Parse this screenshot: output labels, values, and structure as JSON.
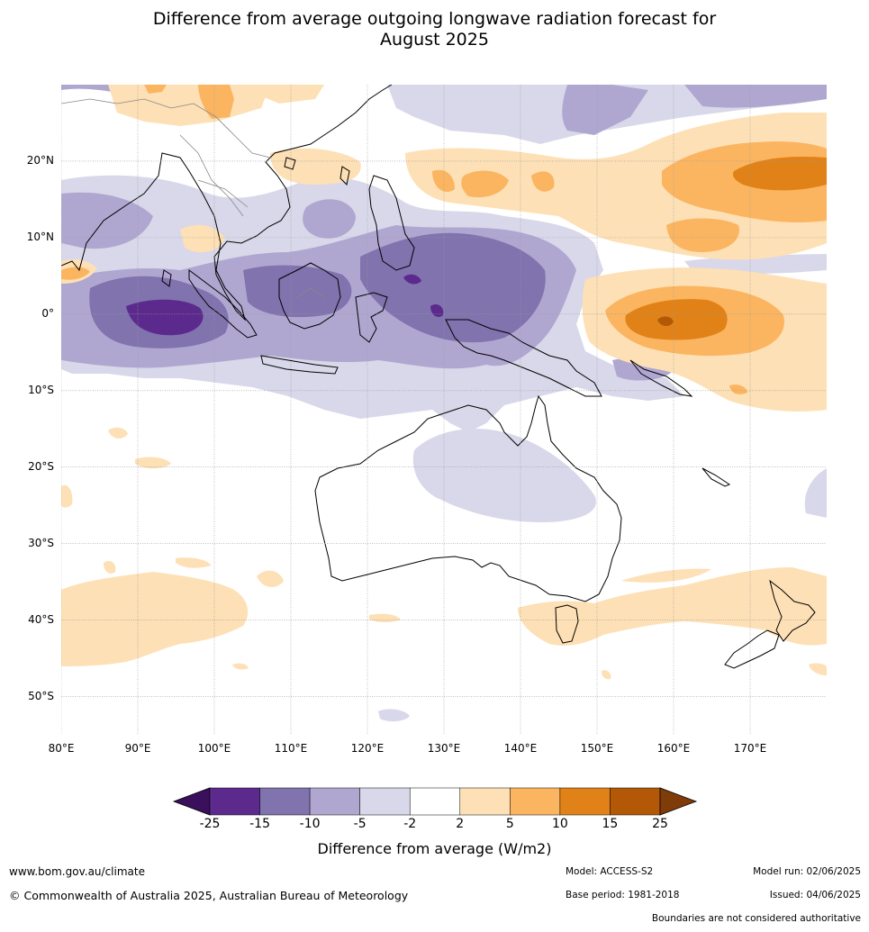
{
  "title_line1": "Difference from average outgoing longwave radiation forecast for",
  "title_line2": "August 2025",
  "lat_ticks": [
    "20°N",
    "10°N",
    "0°",
    "10°S",
    "20°S",
    "30°S",
    "40°S",
    "50°S"
  ],
  "lon_ticks": [
    "80°E",
    "90°E",
    "100°E",
    "110°E",
    "120°E",
    "130°E",
    "140°E",
    "150°E",
    "160°E",
    "170°E"
  ],
  "legend": {
    "label": "Difference from average (W/m2)",
    "ticks": [
      "-25",
      "-15",
      "-10",
      "-5",
      "-2",
      "2",
      "5",
      "10",
      "15",
      "25"
    ],
    "colors": [
      "#3a0f5c",
      "#5b2a8c",
      "#8073ae",
      "#b0a7d1",
      "#d8d8ea",
      "#ffffff",
      "#fde0b5",
      "#fbb561",
      "#e08217",
      "#b35807",
      "#7f3b08"
    ]
  },
  "map": {
    "lon_range": [
      80,
      180
    ],
    "lat_range": [
      -55,
      30
    ],
    "features": {
      "negative_regions": "Indian Ocean, Maritime Continent, western Pacific warm pool",
      "positive_regions": "central/western equatorial Pacific, northwest Pacific, Southern Ocean"
    }
  },
  "footer": {
    "url": "www.bom.gov.au/climate",
    "copyright": "© Commonwealth of Australia 2025, Australian Bureau of Meteorology",
    "model": "Model: ACCESS-S2",
    "base_period": "Base period: 1981-2018",
    "model_run": "Model run: 02/06/2025",
    "issued": "Issued: 04/06/2025",
    "boundaries": "Boundaries are not considered authoritative"
  }
}
